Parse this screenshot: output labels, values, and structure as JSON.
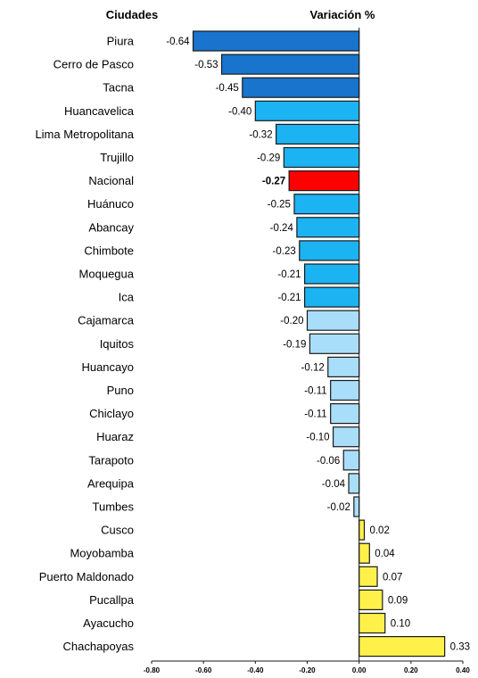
{
  "chart_data": {
    "type": "bar",
    "orientation": "horizontal",
    "title": "",
    "category_header": "Ciudades",
    "value_header": "Variación %",
    "categories": [
      "Piura",
      "Cerro de Pasco",
      "Tacna",
      "Huancavelica",
      "Lima Metropolitana",
      "Trujillo",
      "Nacional",
      "Huánuco",
      "Abancay",
      "Chimbote",
      "Moquegua",
      "Ica",
      "Cajamarca",
      "Iquitos",
      "Huancayo",
      "Puno",
      "Chiclayo",
      "Huaraz",
      "Tarapoto",
      "Arequipa",
      "Tumbes",
      "Cusco",
      "Moyobamba",
      "Puerto Maldonado",
      "Pucallpa",
      "Ayacucho",
      "Chachapoyas"
    ],
    "values": [
      -0.64,
      -0.53,
      -0.45,
      -0.4,
      -0.32,
      -0.29,
      -0.27,
      -0.25,
      -0.24,
      -0.23,
      -0.21,
      -0.21,
      -0.2,
      -0.19,
      -0.12,
      -0.11,
      -0.11,
      -0.1,
      -0.06,
      -0.04,
      -0.02,
      0.02,
      0.04,
      0.07,
      0.09,
      0.1,
      0.33
    ],
    "value_labels": [
      "-0.64",
      "-0.53",
      "-0.45",
      "-0.40",
      "-0.32",
      "-0.29",
      "-0.27",
      "-0.25",
      "-0.24",
      "-0.23",
      "-0.21",
      "-0.21",
      "-0.20",
      "-0.19",
      "-0.12",
      "-0.11",
      "-0.11",
      "-0.10",
      "-0.06",
      "-0.04",
      "-0.02",
      "0.02",
      "0.04",
      "0.07",
      "0.09",
      "0.10",
      "0.33"
    ],
    "bar_colors": [
      "#1874cd",
      "#1874cd",
      "#1874cd",
      "#1cb3f2",
      "#1cb3f2",
      "#1cb3f2",
      "#ff0000",
      "#1cb3f2",
      "#1cb3f2",
      "#1cb3f2",
      "#1cb3f2",
      "#1cb3f2",
      "#a9defa",
      "#a9defa",
      "#a9defa",
      "#a9defa",
      "#a9defa",
      "#a9defa",
      "#a9defa",
      "#a9defa",
      "#a9defa",
      "#fff14a",
      "#fff14a",
      "#fff14a",
      "#fff14a",
      "#fff14a",
      "#fff14a"
    ],
    "highlight_index": 6,
    "xlim": [
      -0.8,
      0.4
    ],
    "x_ticks": [
      "-0.80",
      "-0.60",
      "-0.40",
      "-0.20",
      "0.00",
      "0.20",
      "0.40"
    ],
    "grid": false,
    "legend": "none"
  }
}
